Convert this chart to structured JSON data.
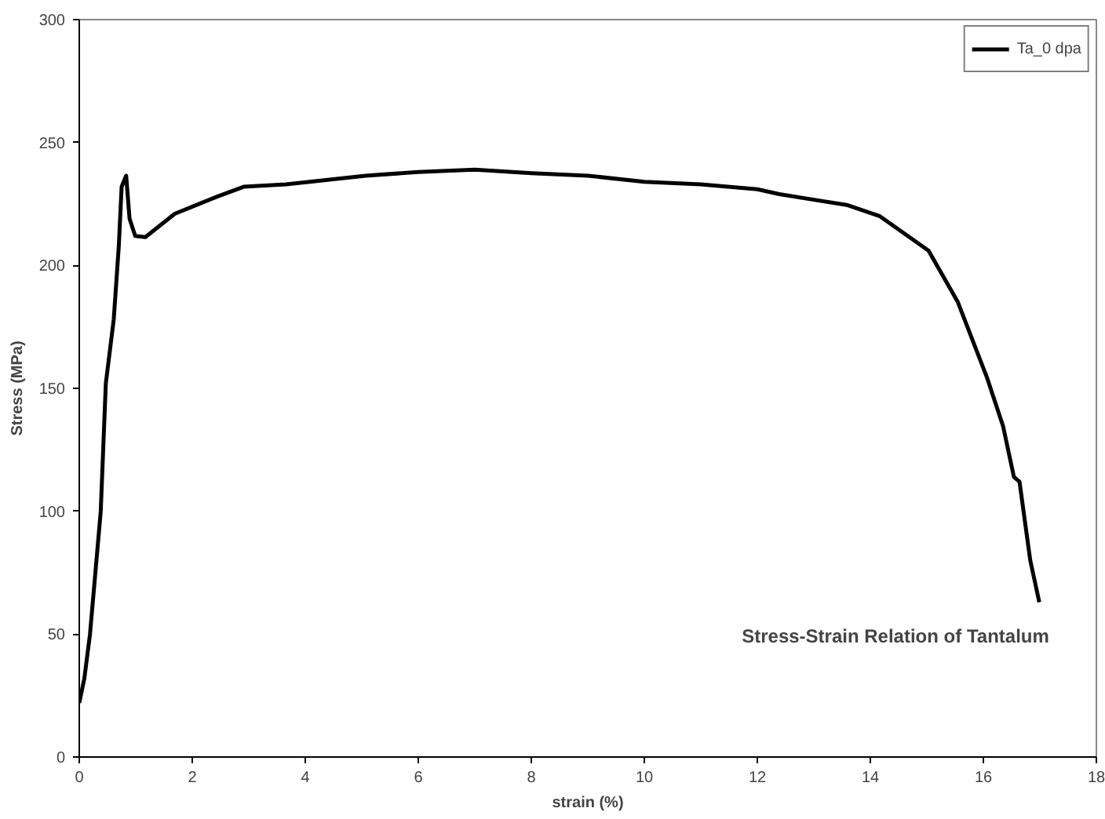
{
  "chart_data": {
    "type": "line",
    "title": "Stress-Strain Relation of Tantalum",
    "xlabel": "strain (%)",
    "ylabel": "Stress (MPa)",
    "xlim": [
      0,
      18
    ],
    "xticks": [
      0,
      2,
      4,
      6,
      8,
      10,
      12,
      14,
      16,
      18
    ],
    "ylim": [
      0,
      300
    ],
    "yticks": [
      0,
      50,
      100,
      150,
      200,
      250,
      300
    ],
    "grid": false,
    "legend": "top right",
    "marker": "none",
    "line_style": "solid",
    "series": [
      {
        "name": "Ta_0 dpa",
        "color": "#000000",
        "x": [
          0,
          0.09,
          0.19,
          0.38,
          0.47,
          0.61,
          0.7,
          0.75,
          0.83,
          0.89,
          0.99,
          1.17,
          1.69,
          2.44,
          2.91,
          3.66,
          5.07,
          6,
          7,
          8,
          9,
          10,
          11,
          12,
          12.39,
          13.6,
          14.17,
          15.03,
          15.55,
          16.07,
          16.35,
          16.54,
          16.64,
          16.83,
          16.99
        ],
        "values": [
          22,
          32,
          50,
          100,
          152,
          178,
          208,
          232,
          236.5,
          219,
          212,
          211.5,
          221,
          228,
          232,
          233,
          236.5,
          238,
          239,
          237.5,
          236.5,
          234,
          233,
          231,
          229,
          224.5,
          220,
          206,
          185,
          154,
          134.5,
          114,
          112,
          80,
          63
        ]
      }
    ]
  }
}
